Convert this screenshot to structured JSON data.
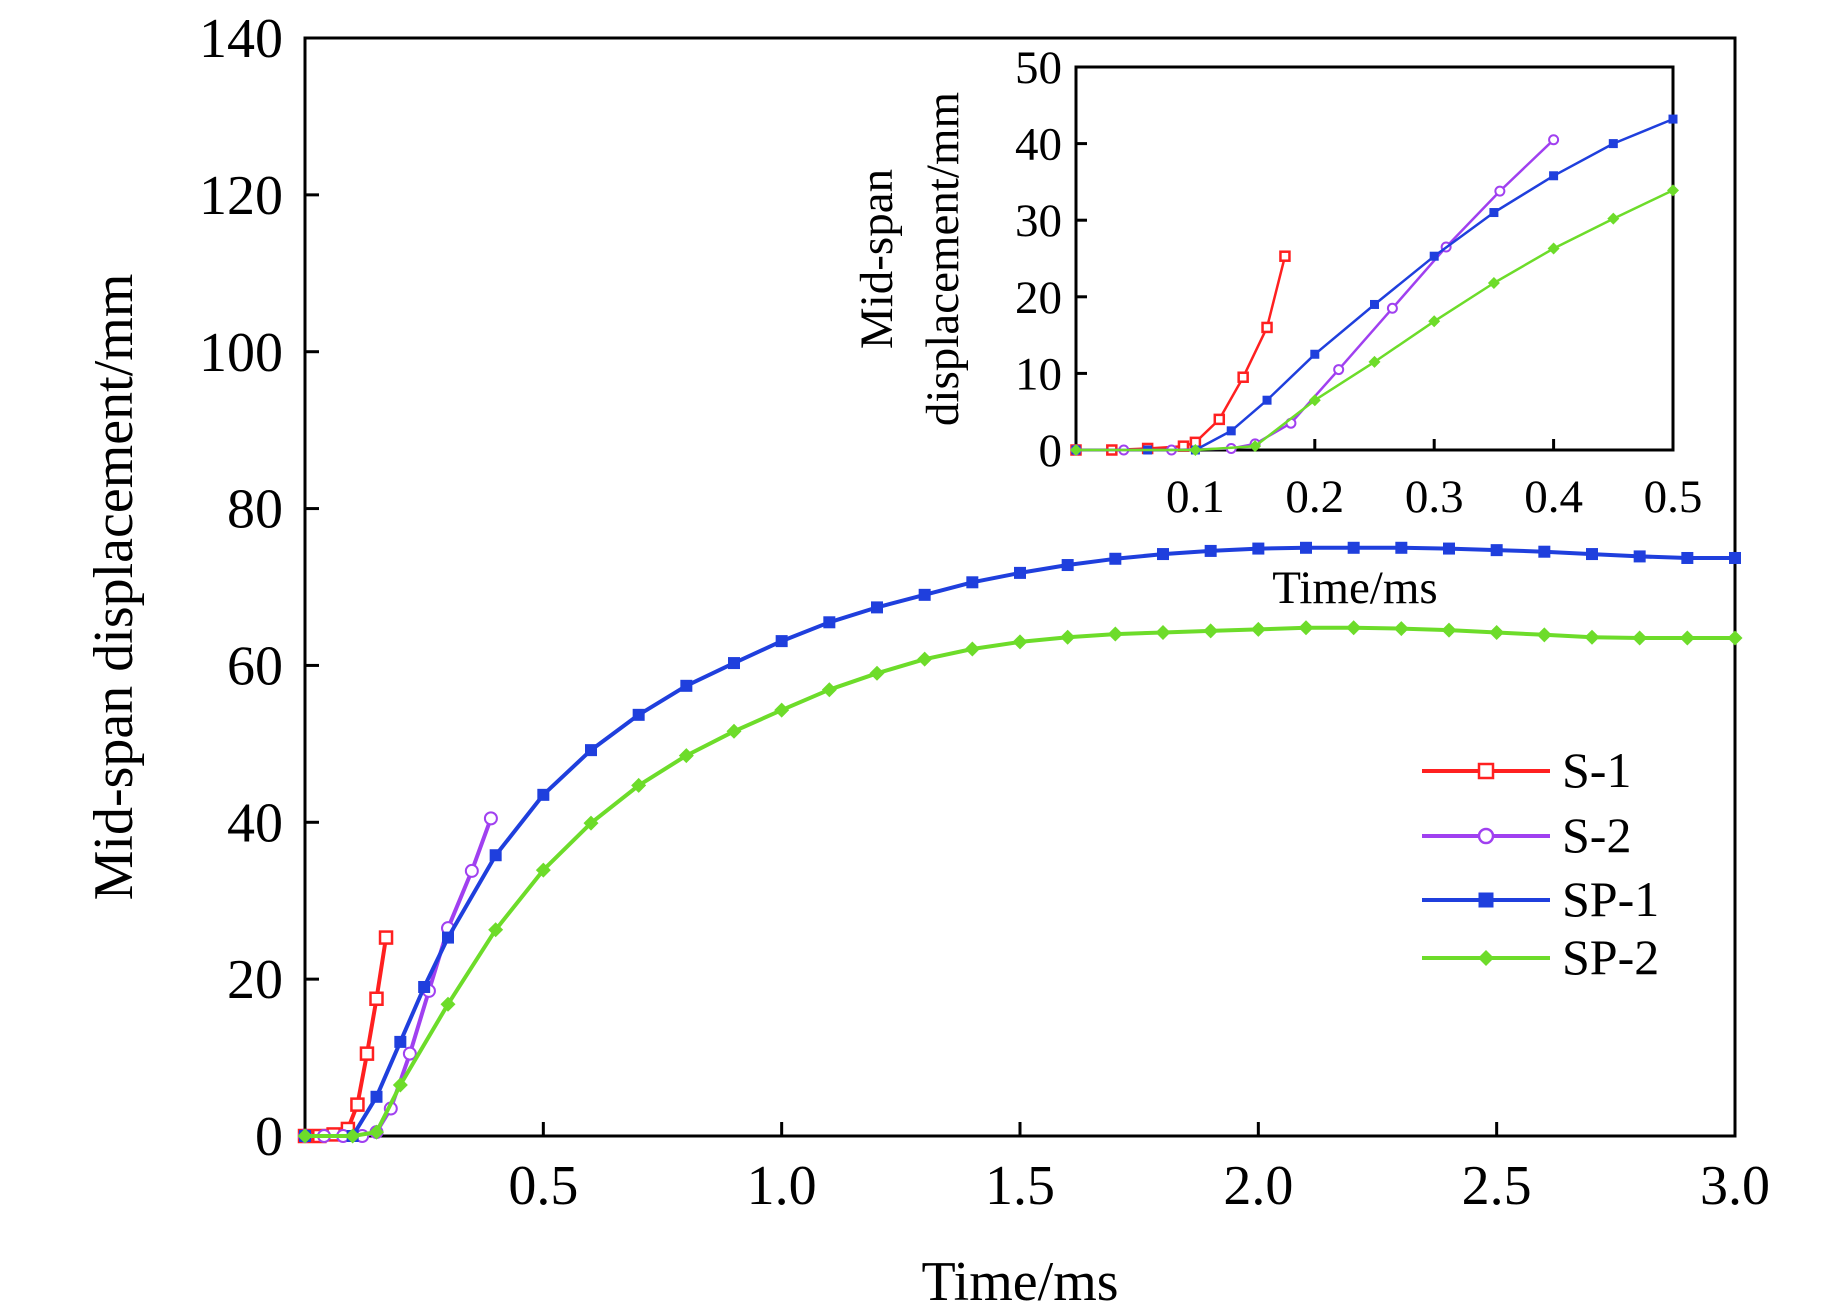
{
  "chart_data": [
    {
      "id": "main",
      "type": "line",
      "title": "",
      "xlabel": "Time/ms",
      "ylabel": "Mid-span displacement/mm",
      "xlim": [
        0,
        3.0
      ],
      "ylim": [
        0,
        140
      ],
      "x_ticks": [
        0.5,
        1.0,
        1.5,
        2.0,
        2.5,
        3.0
      ],
      "x_tick_labels": [
        "0.5",
        "1.0",
        "1.5",
        "2.0",
        "2.5",
        "3.0"
      ],
      "y_ticks": [
        0,
        20,
        40,
        60,
        80,
        100,
        120,
        140
      ],
      "y_tick_labels": [
        "0",
        "20",
        "40",
        "60",
        "80",
        "100",
        "120",
        "140"
      ],
      "legend_position": "lower-right",
      "series": [
        {
          "name": "S-1",
          "color": "#ff2020",
          "marker": "open-square",
          "x": [
            0.0,
            0.03,
            0.06,
            0.09,
            0.11,
            0.13,
            0.15,
            0.17
          ],
          "y": [
            0.0,
            0.0,
            0.2,
            0.9,
            4.0,
            10.5,
            17.5,
            25.3
          ]
        },
        {
          "name": "S-2",
          "color": "#a040f0",
          "marker": "open-circle",
          "x": [
            0.0,
            0.04,
            0.08,
            0.12,
            0.15,
            0.18,
            0.22,
            0.26,
            0.3,
            0.35,
            0.39
          ],
          "y": [
            0.0,
            0.0,
            0.0,
            0.0,
            0.5,
            3.5,
            10.5,
            18.5,
            26.5,
            33.8,
            40.5
          ]
        },
        {
          "name": "SP-1",
          "color": "#1f3fdd",
          "marker": "filled-square",
          "x": [
            0.0,
            0.1,
            0.15,
            0.2,
            0.25,
            0.3,
            0.4,
            0.5,
            0.6,
            0.7,
            0.8,
            0.9,
            1.0,
            1.1,
            1.2,
            1.3,
            1.4,
            1.5,
            1.6,
            1.7,
            1.8,
            1.9,
            2.0,
            2.1,
            2.2,
            2.3,
            2.4,
            2.5,
            2.6,
            2.7,
            2.8,
            2.9,
            3.0
          ],
          "y": [
            0.0,
            0.0,
            5.0,
            12.0,
            19.0,
            25.3,
            35.8,
            43.5,
            49.2,
            53.7,
            57.4,
            60.3,
            63.1,
            65.5,
            67.4,
            69.0,
            70.6,
            71.8,
            72.8,
            73.6,
            74.2,
            74.6,
            74.9,
            75.0,
            75.0,
            75.0,
            74.9,
            74.7,
            74.5,
            74.2,
            73.9,
            73.7,
            73.7
          ]
        },
        {
          "name": "SP-2",
          "color": "#6ddc2a",
          "marker": "filled-diamond",
          "x": [
            0.0,
            0.1,
            0.15,
            0.2,
            0.3,
            0.4,
            0.5,
            0.6,
            0.7,
            0.8,
            0.9,
            1.0,
            1.1,
            1.2,
            1.3,
            1.4,
            1.5,
            1.6,
            1.7,
            1.8,
            1.9,
            2.0,
            2.1,
            2.2,
            2.3,
            2.4,
            2.5,
            2.6,
            2.7,
            2.8,
            2.9,
            3.0
          ],
          "y": [
            0.0,
            0.0,
            0.5,
            6.5,
            16.8,
            26.3,
            33.9,
            39.9,
            44.7,
            48.5,
            51.6,
            54.3,
            56.9,
            59.0,
            60.8,
            62.1,
            63.0,
            63.6,
            64.0,
            64.2,
            64.4,
            64.6,
            64.8,
            64.8,
            64.7,
            64.5,
            64.2,
            63.9,
            63.6,
            63.5,
            63.5,
            63.5
          ]
        }
      ]
    },
    {
      "id": "inset",
      "type": "line",
      "title": "",
      "xlabel": "Time/ms",
      "ylabel_line1": "Mid-span",
      "ylabel_line2": "displacement/mm",
      "xlim": [
        0,
        0.5
      ],
      "ylim": [
        0,
        50
      ],
      "x_ticks": [
        0.1,
        0.2,
        0.3,
        0.4,
        0.5
      ],
      "x_tick_labels": [
        "0.1",
        "0.2",
        "0.3",
        "0.4",
        "0.5"
      ],
      "y_ticks": [
        0,
        10,
        20,
        30,
        40,
        50
      ],
      "y_tick_labels": [
        "0",
        "10",
        "20",
        "30",
        "40",
        "50"
      ],
      "series": [
        {
          "name": "S-1",
          "color": "#ff2020",
          "marker": "open-square",
          "x": [
            0.0,
            0.03,
            0.06,
            0.09,
            0.1,
            0.12,
            0.14,
            0.16,
            0.175
          ],
          "y": [
            0.0,
            0.0,
            0.2,
            0.5,
            1.0,
            4.0,
            9.5,
            16.0,
            25.3
          ]
        },
        {
          "name": "S-2",
          "color": "#a040f0",
          "marker": "open-circle",
          "x": [
            0.0,
            0.04,
            0.08,
            0.13,
            0.15,
            0.18,
            0.22,
            0.265,
            0.31,
            0.355,
            0.4
          ],
          "y": [
            0.0,
            0.0,
            0.0,
            0.2,
            0.8,
            3.5,
            10.5,
            18.5,
            26.5,
            33.8,
            40.5
          ]
        },
        {
          "name": "SP-1",
          "color": "#1f3fdd",
          "marker": "filled-square",
          "x": [
            0.0,
            0.06,
            0.1,
            0.13,
            0.16,
            0.2,
            0.25,
            0.3,
            0.35,
            0.4,
            0.45,
            0.5
          ],
          "y": [
            0.0,
            0.0,
            0.0,
            2.5,
            6.5,
            12.5,
            19.0,
            25.3,
            31.0,
            35.8,
            40.0,
            43.2
          ]
        },
        {
          "name": "SP-2",
          "color": "#6ddc2a",
          "marker": "filled-diamond",
          "x": [
            0.0,
            0.1,
            0.15,
            0.2,
            0.25,
            0.3,
            0.35,
            0.4,
            0.45,
            0.5
          ],
          "y": [
            0.0,
            0.0,
            0.5,
            6.5,
            11.5,
            16.8,
            21.8,
            26.3,
            30.2,
            33.9
          ]
        }
      ]
    }
  ]
}
